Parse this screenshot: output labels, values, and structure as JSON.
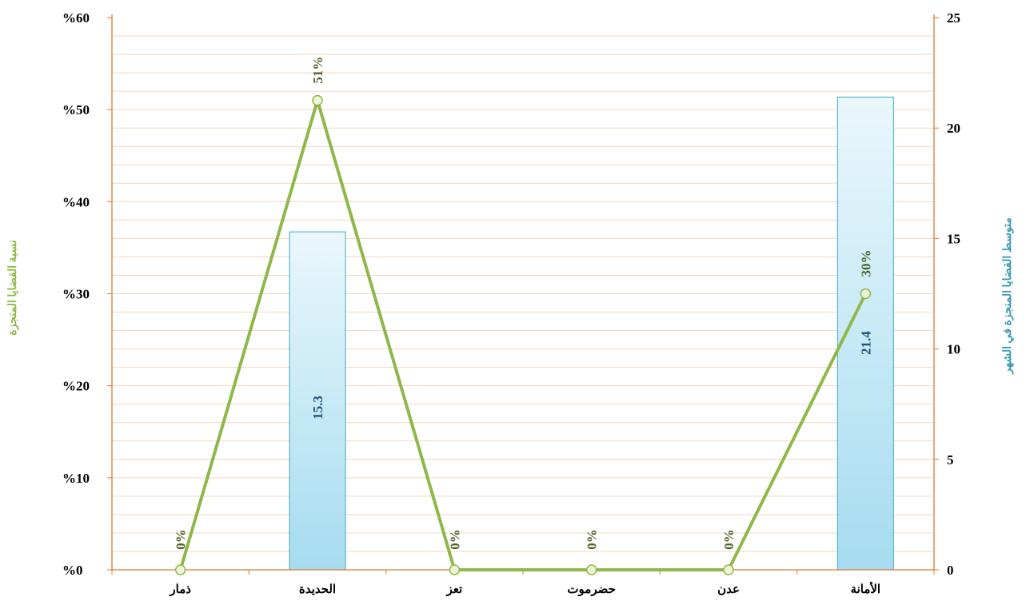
{
  "chart_data": {
    "type": "bar+line",
    "categories": [
      "الأمانة",
      "عدن",
      "حضرموت",
      "تعز",
      "الحديدة",
      "ذمار"
    ],
    "series": [
      {
        "type": "bar",
        "axis": "right",
        "values": [
          21.4,
          0,
          0,
          0,
          15.3,
          0
        ],
        "labels": [
          "21.4",
          "",
          "",
          "",
          "15.3",
          ""
        ],
        "color": "#9fd9ef"
      },
      {
        "type": "line",
        "axis": "left",
        "values": [
          30,
          0,
          0,
          0,
          51,
          0
        ],
        "labels": [
          "30%",
          "0%",
          "0%",
          "0%",
          "51%",
          "0%"
        ],
        "color": "#8fb84a"
      }
    ],
    "y_left": {
      "label": "نسبة القضايا المنجزة",
      "ticks": [
        "%0",
        "%10",
        "%20",
        "%30",
        "%40",
        "%50",
        "%60"
      ],
      "range": [
        0,
        60
      ]
    },
    "y_right": {
      "label": "متوسط القضايا المنجزة في الشهر",
      "ticks": [
        "0",
        "5",
        "10",
        "15",
        "20",
        "25"
      ],
      "range": [
        0,
        25
      ]
    },
    "colors": {
      "axis": "#e07a2e",
      "grid": "#f2d6bf",
      "bar_top": "#eaf7fc",
      "bar_bottom": "#a6dcf0",
      "bar_border": "#3fa9c1",
      "line": "#8fb84a",
      "marker_fill": "#eef5d6"
    }
  }
}
